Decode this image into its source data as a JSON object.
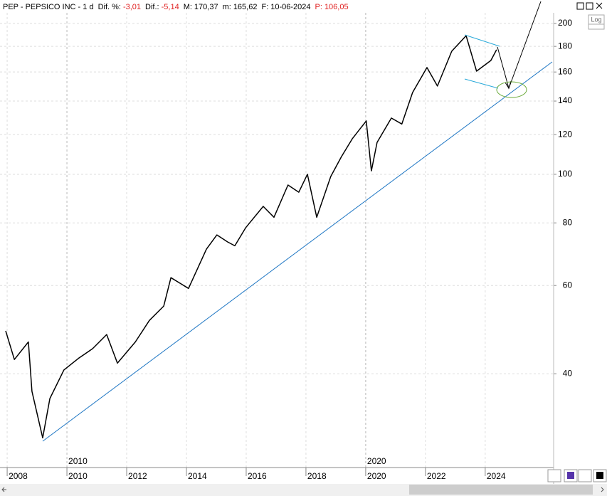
{
  "header": {
    "symbol": "PEP - PEPSICO INC - 1 d",
    "fields": [
      {
        "label": "Dif. %:",
        "value": "-3,01"
      },
      {
        "label": "Dif.:",
        "value": "-5,14"
      },
      {
        "label": "M:",
        "value": "170,37"
      },
      {
        "label": "m:",
        "value": "165,62"
      },
      {
        "label": "F:",
        "value": "10-06-2024"
      },
      {
        "label": "P:",
        "value": "106,05"
      }
    ],
    "log_button": "Log"
  },
  "chart_data": {
    "type": "line",
    "log_scale": true,
    "grid": true,
    "color": "#000000",
    "x": [
      2007.95,
      2008.24,
      2008.71,
      2008.83,
      2009.19,
      2009.43,
      2009.9,
      2010.38,
      2010.86,
      2011.33,
      2011.69,
      2012.29,
      2012.76,
      2013.24,
      2013.48,
      2014.07,
      2014.67,
      2015.02,
      2015.38,
      2015.62,
      2015.98,
      2016.57,
      2016.93,
      2017.4,
      2017.76,
      2018.05,
      2018.36,
      2018.83,
      2019.19,
      2019.55,
      2020.02,
      2020.19,
      2020.38,
      2020.86,
      2021.21,
      2021.57,
      2022.05,
      2022.4,
      2022.88,
      2023.36,
      2023.71,
      2024.19,
      2024.38
    ],
    "series": [
      {
        "values": [
          48.7,
          42.7,
          46.3,
          36.9,
          29.8,
          35.7,
          40.7,
          42.9,
          44.9,
          47.9,
          42.0,
          46.3,
          51.1,
          54.6,
          62.2,
          59.2,
          70.9,
          75.7,
          73.3,
          72.0,
          78.2,
          86.3,
          82.1,
          95.2,
          92.1,
          100,
          82.1,
          99,
          108.5,
          117.7,
          127.8,
          101.6,
          115.8,
          129.5,
          126,
          145.6,
          163.3,
          150,
          176,
          189,
          160.6,
          168.7,
          177.2
        ]
      }
    ],
    "xlim": [
      2007.76,
      2026.29
    ],
    "xticks": [
      2008,
      2010,
      2012,
      2014,
      2016,
      2018,
      2020,
      2022,
      2024
    ],
    "ylim": [
      26,
      210
    ],
    "yticks": [
      40,
      60,
      80,
      100,
      120,
      140,
      160,
      180,
      200
    ],
    "era_labels": [
      {
        "text": "2010",
        "x": 2010
      },
      {
        "text": "2020",
        "x": 2020
      }
    ]
  }
}
